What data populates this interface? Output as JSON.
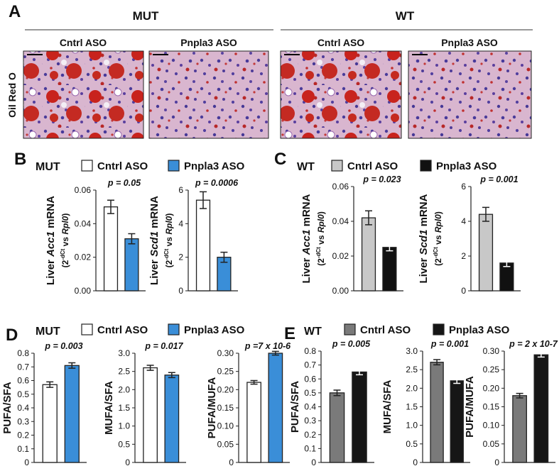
{
  "figure": {
    "panel_a": {
      "letter": "A",
      "row_label": "Oil Red O",
      "groups": [
        {
          "name": "MUT",
          "columns": [
            "Cntrl ASO",
            "Pnpla3 ASO"
          ]
        },
        {
          "name": "WT",
          "columns": [
            "Cntrl ASO",
            "Pnpla3 ASO"
          ]
        }
      ]
    },
    "panels": [
      {
        "letter": "B",
        "group": "MUT",
        "legend": [
          {
            "name": "Cntrl ASO",
            "color": "#ffffff"
          },
          {
            "name": "Pnpla3 ASO",
            "color": "#3a8ed8"
          }
        ]
      },
      {
        "letter": "C",
        "group": "WT",
        "legend": [
          {
            "name": "Cntrl ASO",
            "color": "#c8c8c8"
          },
          {
            "name": "Pnpla3 ASO",
            "color": "#111111"
          }
        ]
      },
      {
        "letter": "D",
        "group": "MUT",
        "legend": [
          {
            "name": "Cntrl ASO",
            "color": "#ffffff"
          },
          {
            "name": "Pnpla3 ASO",
            "color": "#3a8ed8"
          }
        ]
      },
      {
        "letter": "E",
        "group": "WT",
        "legend": [
          {
            "name": "Cntrl ASO",
            "color": "#7a7a7a"
          },
          {
            "name": "Pnpla3 ASO",
            "color": "#161616"
          }
        ]
      }
    ]
  },
  "chart_data": [
    {
      "type": "bar",
      "ylabel": [
        "Liver ",
        "Acc1",
        " mRNA"
      ],
      "ylabel2": [
        "(2",
        "-dCt",
        " vs ",
        "Rpl0",
        ")"
      ],
      "annotation": "p = 0.05",
      "values": [
        0.05,
        0.031
      ],
      "errors": [
        0.004,
        0.003
      ],
      "colors": [
        "#ffffff",
        "#3a8ed8"
      ],
      "ylim": [
        0,
        0.06
      ],
      "yticks": [
        {
          "value": 0,
          "label": "0.00"
        },
        {
          "value": 0.02,
          "label": "0.02"
        },
        {
          "value": 0.04,
          "label": "0.04"
        },
        {
          "value": 0.06,
          "label": "0.06"
        }
      ]
    },
    {
      "type": "bar",
      "ylabel": [
        "Liver ",
        "Scd1",
        " mRNA"
      ],
      "ylabel2": [
        "(2",
        "-dCt",
        " vs ",
        "Rpl0",
        ")"
      ],
      "annotation": "p = 0.0006",
      "values": [
        5.4,
        2.0
      ],
      "errors": [
        0.5,
        0.3
      ],
      "colors": [
        "#ffffff",
        "#3a8ed8"
      ],
      "ylim": [
        0,
        6
      ],
      "yticks": [
        0,
        2,
        4,
        6
      ]
    },
    {
      "type": "bar",
      "ylabel": [
        "Liver ",
        "Acc1",
        " mRNA"
      ],
      "ylabel2": [
        "(2",
        "-dCt",
        " vs ",
        "Rpl0",
        ")"
      ],
      "annotation": "p = 0.023",
      "values": [
        0.042,
        0.025
      ],
      "errors": [
        0.004,
        0.002
      ],
      "colors": [
        "#c8c8c8",
        "#111111"
      ],
      "ylim": [
        0,
        0.06
      ],
      "yticks": [
        {
          "value": 0,
          "label": "0.00"
        },
        {
          "value": 0.02,
          "label": "0.02"
        },
        {
          "value": 0.04,
          "label": "0.04"
        },
        {
          "value": 0.06,
          "label": "0.06"
        }
      ]
    },
    {
      "type": "bar",
      "ylabel": [
        "Liver ",
        "Scd1",
        " mRNA"
      ],
      "ylabel2": [
        "(2",
        "-dCt",
        " vs ",
        "Rpl0",
        ")"
      ],
      "annotation": "p = 0.001",
      "values": [
        4.4,
        1.6
      ],
      "errors": [
        0.4,
        0.2
      ],
      "colors": [
        "#c8c8c8",
        "#111111"
      ],
      "ylim": [
        0,
        6
      ],
      "yticks": [
        0,
        2,
        4,
        6
      ]
    },
    {
      "type": "bar",
      "ylabel": [
        "PUFA/SFA"
      ],
      "annotation": "p = 0.003",
      "values": [
        0.57,
        0.71
      ],
      "errors": [
        0.02,
        0.02
      ],
      "colors": [
        "#ffffff",
        "#3a8ed8"
      ],
      "ylim": [
        0,
        0.8
      ],
      "yticks": [
        0,
        0.1,
        0.2,
        0.3,
        0.4,
        0.5,
        0.6,
        0.7,
        0.8
      ]
    },
    {
      "type": "bar",
      "ylabel": [
        "MUFA/SFA"
      ],
      "annotation": "p = 0.017",
      "values": [
        2.6,
        2.4
      ],
      "errors": [
        0.07,
        0.07
      ],
      "colors": [
        "#ffffff",
        "#3a8ed8"
      ],
      "ylim": [
        0,
        3
      ],
      "yticks": [
        0,
        0.5,
        {
          "value": 1,
          "label": "1.0"
        },
        1.5,
        {
          "value": 2,
          "label": "2.0"
        },
        2.5,
        {
          "value": 3,
          "label": "3.0"
        }
      ]
    },
    {
      "type": "bar",
      "ylabel": [
        "PUFA/MUFA"
      ],
      "annotation": "p =7 x 10-6",
      "values": [
        0.22,
        0.3
      ],
      "errors": [
        0.005,
        0.005
      ],
      "colors": [
        "#ffffff",
        "#3a8ed8"
      ],
      "ylim": [
        0,
        0.3
      ],
      "yticks": [
        0,
        0.05,
        {
          "value": 0.1,
          "label": "0.10"
        },
        0.15,
        {
          "value": 0.2,
          "label": "0.20"
        },
        0.25,
        {
          "value": 0.3,
          "label": "0.30"
        }
      ]
    },
    {
      "type": "bar",
      "ylabel": [
        "PUFA/SFA"
      ],
      "annotation": "p = 0.005",
      "values": [
        0.5,
        0.65
      ],
      "errors": [
        0.02,
        0.02
      ],
      "colors": [
        "#7a7a7a",
        "#161616"
      ],
      "ylim": [
        0,
        0.8
      ],
      "yticks": [
        0,
        0.1,
        0.2,
        0.3,
        0.4,
        0.5,
        0.6,
        0.7,
        0.8
      ]
    },
    {
      "type": "bar",
      "ylabel": [
        "MUFA/SFA"
      ],
      "annotation": "p = 0.001",
      "values": [
        2.7,
        2.2
      ],
      "errors": [
        0.07,
        0.07
      ],
      "colors": [
        "#7a7a7a",
        "#161616"
      ],
      "ylim": [
        0,
        3
      ],
      "yticks": [
        0,
        0.5,
        {
          "value": 1,
          "label": "1.0"
        },
        1.5,
        {
          "value": 2,
          "label": "2.0"
        },
        2.5,
        {
          "value": 3,
          "label": "3.0"
        }
      ]
    },
    {
      "type": "bar",
      "ylabel": [
        "PUFA/MUFA"
      ],
      "annotation": "p = 2 x 10-7",
      "values": [
        0.18,
        0.29
      ],
      "errors": [
        0.006,
        0.006
      ],
      "colors": [
        "#7a7a7a",
        "#161616"
      ],
      "ylim": [
        0,
        0.3
      ],
      "yticks": [
        0,
        0.05,
        {
          "value": 0.1,
          "label": "0.10"
        },
        0.15,
        {
          "value": 0.2,
          "label": "0.20"
        },
        0.25,
        {
          "value": 0.3,
          "label": "0.30"
        }
      ]
    }
  ]
}
